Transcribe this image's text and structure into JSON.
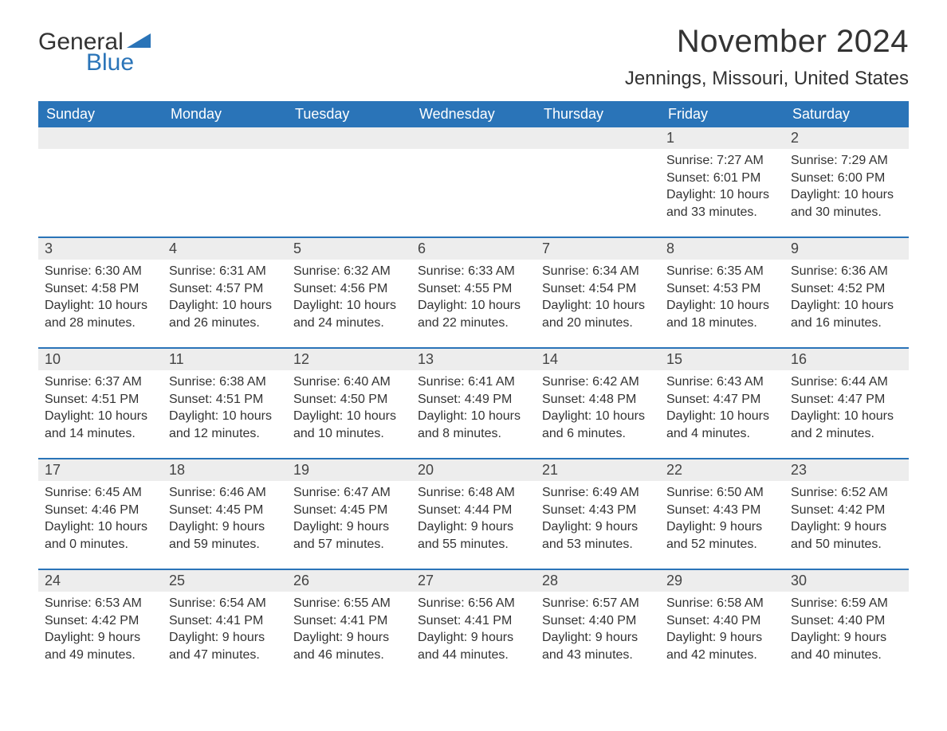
{
  "brand": {
    "word1": "General",
    "word2": "Blue",
    "flag_color": "#2a74b8"
  },
  "title": "November 2024",
  "location": "Jennings, Missouri, United States",
  "colors": {
    "header_bg": "#2a74b8",
    "header_text": "#ffffff",
    "daynum_bg": "#ededed",
    "text": "#333333",
    "page_bg": "#ffffff"
  },
  "typography": {
    "title_fontsize": 40,
    "location_fontsize": 24,
    "header_fontsize": 18,
    "daynum_fontsize": 18,
    "body_fontsize": 16
  },
  "day_headers": [
    "Sunday",
    "Monday",
    "Tuesday",
    "Wednesday",
    "Thursday",
    "Friday",
    "Saturday"
  ],
  "weeks": [
    [
      {
        "empty": true
      },
      {
        "empty": true
      },
      {
        "empty": true
      },
      {
        "empty": true
      },
      {
        "empty": true
      },
      {
        "num": "1",
        "sunrise": "Sunrise: 7:27 AM",
        "sunset": "Sunset: 6:01 PM",
        "daylight": "Daylight: 10 hours and 33 minutes."
      },
      {
        "num": "2",
        "sunrise": "Sunrise: 7:29 AM",
        "sunset": "Sunset: 6:00 PM",
        "daylight": "Daylight: 10 hours and 30 minutes."
      }
    ],
    [
      {
        "num": "3",
        "sunrise": "Sunrise: 6:30 AM",
        "sunset": "Sunset: 4:58 PM",
        "daylight": "Daylight: 10 hours and 28 minutes."
      },
      {
        "num": "4",
        "sunrise": "Sunrise: 6:31 AM",
        "sunset": "Sunset: 4:57 PM",
        "daylight": "Daylight: 10 hours and 26 minutes."
      },
      {
        "num": "5",
        "sunrise": "Sunrise: 6:32 AM",
        "sunset": "Sunset: 4:56 PM",
        "daylight": "Daylight: 10 hours and 24 minutes."
      },
      {
        "num": "6",
        "sunrise": "Sunrise: 6:33 AM",
        "sunset": "Sunset: 4:55 PM",
        "daylight": "Daylight: 10 hours and 22 minutes."
      },
      {
        "num": "7",
        "sunrise": "Sunrise: 6:34 AM",
        "sunset": "Sunset: 4:54 PM",
        "daylight": "Daylight: 10 hours and 20 minutes."
      },
      {
        "num": "8",
        "sunrise": "Sunrise: 6:35 AM",
        "sunset": "Sunset: 4:53 PM",
        "daylight": "Daylight: 10 hours and 18 minutes."
      },
      {
        "num": "9",
        "sunrise": "Sunrise: 6:36 AM",
        "sunset": "Sunset: 4:52 PM",
        "daylight": "Daylight: 10 hours and 16 minutes."
      }
    ],
    [
      {
        "num": "10",
        "sunrise": "Sunrise: 6:37 AM",
        "sunset": "Sunset: 4:51 PM",
        "daylight": "Daylight: 10 hours and 14 minutes."
      },
      {
        "num": "11",
        "sunrise": "Sunrise: 6:38 AM",
        "sunset": "Sunset: 4:51 PM",
        "daylight": "Daylight: 10 hours and 12 minutes."
      },
      {
        "num": "12",
        "sunrise": "Sunrise: 6:40 AM",
        "sunset": "Sunset: 4:50 PM",
        "daylight": "Daylight: 10 hours and 10 minutes."
      },
      {
        "num": "13",
        "sunrise": "Sunrise: 6:41 AM",
        "sunset": "Sunset: 4:49 PM",
        "daylight": "Daylight: 10 hours and 8 minutes."
      },
      {
        "num": "14",
        "sunrise": "Sunrise: 6:42 AM",
        "sunset": "Sunset: 4:48 PM",
        "daylight": "Daylight: 10 hours and 6 minutes."
      },
      {
        "num": "15",
        "sunrise": "Sunrise: 6:43 AM",
        "sunset": "Sunset: 4:47 PM",
        "daylight": "Daylight: 10 hours and 4 minutes."
      },
      {
        "num": "16",
        "sunrise": "Sunrise: 6:44 AM",
        "sunset": "Sunset: 4:47 PM",
        "daylight": "Daylight: 10 hours and 2 minutes."
      }
    ],
    [
      {
        "num": "17",
        "sunrise": "Sunrise: 6:45 AM",
        "sunset": "Sunset: 4:46 PM",
        "daylight": "Daylight: 10 hours and 0 minutes."
      },
      {
        "num": "18",
        "sunrise": "Sunrise: 6:46 AM",
        "sunset": "Sunset: 4:45 PM",
        "daylight": "Daylight: 9 hours and 59 minutes."
      },
      {
        "num": "19",
        "sunrise": "Sunrise: 6:47 AM",
        "sunset": "Sunset: 4:45 PM",
        "daylight": "Daylight: 9 hours and 57 minutes."
      },
      {
        "num": "20",
        "sunrise": "Sunrise: 6:48 AM",
        "sunset": "Sunset: 4:44 PM",
        "daylight": "Daylight: 9 hours and 55 minutes."
      },
      {
        "num": "21",
        "sunrise": "Sunrise: 6:49 AM",
        "sunset": "Sunset: 4:43 PM",
        "daylight": "Daylight: 9 hours and 53 minutes."
      },
      {
        "num": "22",
        "sunrise": "Sunrise: 6:50 AM",
        "sunset": "Sunset: 4:43 PM",
        "daylight": "Daylight: 9 hours and 52 minutes."
      },
      {
        "num": "23",
        "sunrise": "Sunrise: 6:52 AM",
        "sunset": "Sunset: 4:42 PM",
        "daylight": "Daylight: 9 hours and 50 minutes."
      }
    ],
    [
      {
        "num": "24",
        "sunrise": "Sunrise: 6:53 AM",
        "sunset": "Sunset: 4:42 PM",
        "daylight": "Daylight: 9 hours and 49 minutes."
      },
      {
        "num": "25",
        "sunrise": "Sunrise: 6:54 AM",
        "sunset": "Sunset: 4:41 PM",
        "daylight": "Daylight: 9 hours and 47 minutes."
      },
      {
        "num": "26",
        "sunrise": "Sunrise: 6:55 AM",
        "sunset": "Sunset: 4:41 PM",
        "daylight": "Daylight: 9 hours and 46 minutes."
      },
      {
        "num": "27",
        "sunrise": "Sunrise: 6:56 AM",
        "sunset": "Sunset: 4:41 PM",
        "daylight": "Daylight: 9 hours and 44 minutes."
      },
      {
        "num": "28",
        "sunrise": "Sunrise: 6:57 AM",
        "sunset": "Sunset: 4:40 PM",
        "daylight": "Daylight: 9 hours and 43 minutes."
      },
      {
        "num": "29",
        "sunrise": "Sunrise: 6:58 AM",
        "sunset": "Sunset: 4:40 PM",
        "daylight": "Daylight: 9 hours and 42 minutes."
      },
      {
        "num": "30",
        "sunrise": "Sunrise: 6:59 AM",
        "sunset": "Sunset: 4:40 PM",
        "daylight": "Daylight: 9 hours and 40 minutes."
      }
    ]
  ]
}
